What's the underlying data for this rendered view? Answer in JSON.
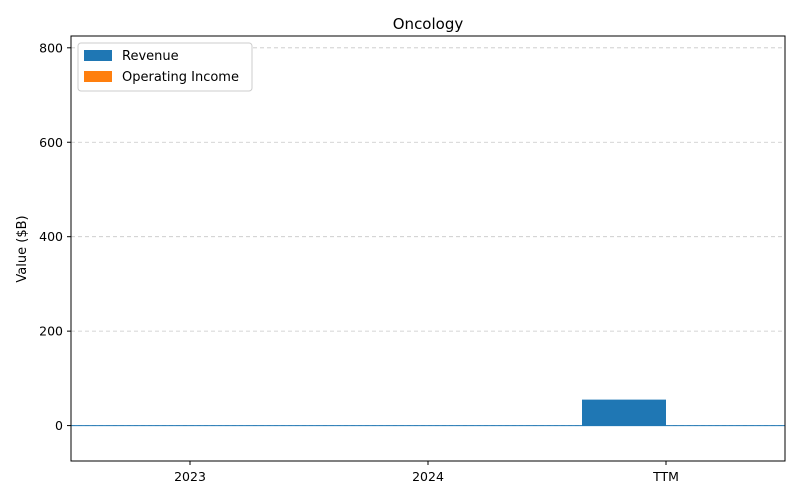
{
  "chart_data": {
    "type": "bar",
    "title": "Oncology",
    "xlabel": "",
    "ylabel": "Value ($B)",
    "categories": [
      "2023",
      "2024",
      "TTM"
    ],
    "series": [
      {
        "name": "Revenue",
        "color": "#1f77b4",
        "values": [
          0,
          0,
          55
        ]
      },
      {
        "name": "Operating Income",
        "color": "#ff7f0e",
        "values": [
          0,
          0,
          0
        ]
      }
    ],
    "ylim": [
      -75,
      825
    ],
    "yticks": [
      0,
      200,
      400,
      600,
      800
    ],
    "grid": true,
    "legend_position": "top-left"
  }
}
